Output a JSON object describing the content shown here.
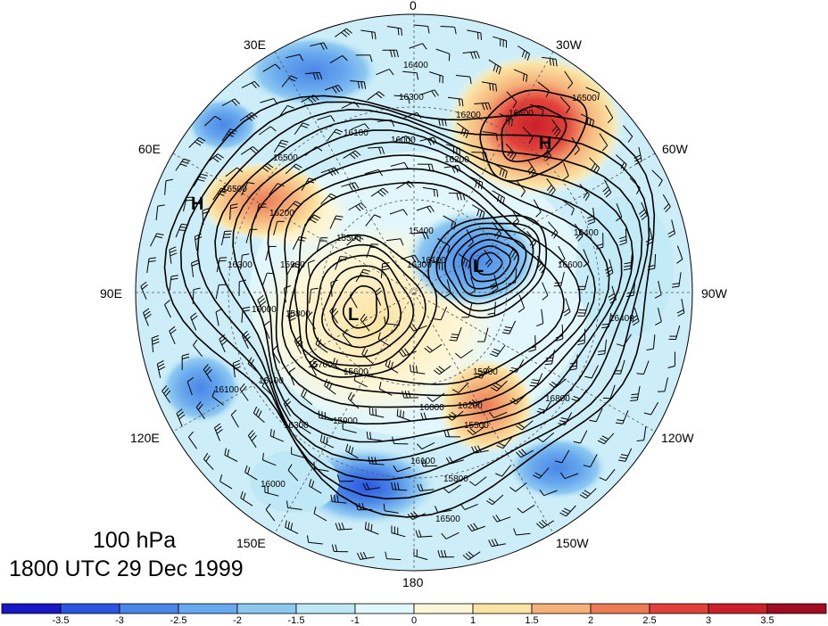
{
  "title": {
    "level": "100 hPa",
    "time": "1800 UTC 29 Dec 1999"
  },
  "map": {
    "projection": "north polar stereographic",
    "longitude_labels": [
      "0",
      "30W",
      "60W",
      "90W",
      "120W",
      "150W",
      "180",
      "150E",
      "120E",
      "90E",
      "60E",
      "30E"
    ],
    "pressure_systems": [
      {
        "type": "H",
        "label": "H"
      },
      {
        "type": "H",
        "label": "H"
      },
      {
        "type": "L",
        "label": "L"
      },
      {
        "type": "L",
        "label": "L"
      }
    ],
    "contour_labels": [
      "15400",
      "15500",
      "15600",
      "15700",
      "15800",
      "15900",
      "16000",
      "16100",
      "16200",
      "16300",
      "16400",
      "16500",
      "16600",
      "16800"
    ],
    "contour_label_instances": [
      "16400",
      "16500",
      "16300",
      "16200",
      "16100",
      "16000",
      "16200",
      "16400",
      "16500",
      "16200",
      "16300",
      "16600",
      "15400",
      "15500",
      "15900",
      "16000",
      "15800",
      "15700",
      "15600",
      "16100",
      "16000",
      "15900",
      "16100",
      "16200",
      "16300",
      "16400",
      "16500",
      "15800",
      "16400",
      "16800",
      "16100",
      "16000",
      "16500",
      "16300",
      "15500",
      "16100",
      "15900"
    ],
    "fields": [
      "geopotential height contours",
      "shaded anomaly",
      "wind barbs"
    ]
  },
  "colorbar": {
    "levels": [
      "-3.5",
      "-3",
      "-2.5",
      "-2",
      "-1.5",
      "-1",
      "0",
      "1",
      "1.5",
      "2",
      "2.5",
      "3",
      "3.5"
    ],
    "colors": [
      "#1717c6",
      "#2b55e0",
      "#4a86e8",
      "#68a8ee",
      "#8dc8f2",
      "#bfe8f6",
      "#e2f7fb",
      "#fdf7d9",
      "#fbe3a3",
      "#f5b17a",
      "#ed7b56",
      "#e2413a",
      "#c9202a",
      "#a10e22"
    ]
  }
}
